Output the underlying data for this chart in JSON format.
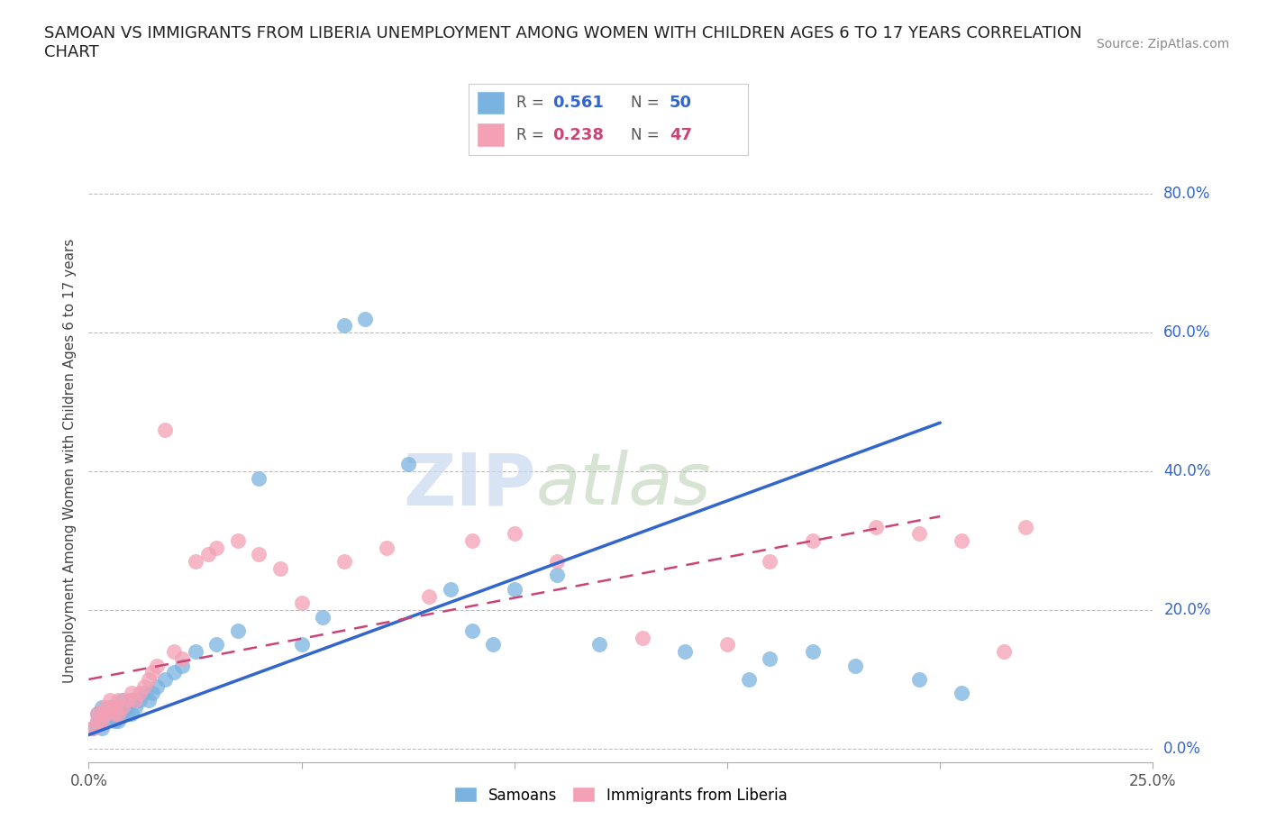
{
  "title": "SAMOAN VS IMMIGRANTS FROM LIBERIA UNEMPLOYMENT AMONG WOMEN WITH CHILDREN AGES 6 TO 17 YEARS CORRELATION\nCHART",
  "source": "Source: ZipAtlas.com",
  "ylabel_label": "Unemployment Among Women with Children Ages 6 to 17 years",
  "xlim": [
    0.0,
    0.25
  ],
  "ylim": [
    -0.02,
    0.85
  ],
  "ytick_vals": [
    0.0,
    0.2,
    0.4,
    0.6,
    0.8
  ],
  "xtick_vals": [
    0.0,
    0.05,
    0.1,
    0.15,
    0.2,
    0.25
  ],
  "watermark_zip": "ZIP",
  "watermark_atlas": "atlas",
  "legend_r1": "0.561",
  "legend_n1": "50",
  "legend_r2": "0.238",
  "legend_n2": "47",
  "samoan_color": "#7ab3e0",
  "liberia_color": "#f4a0b5",
  "samoan_line_color": "#3366cc",
  "liberia_line_color": "#cc4477",
  "background": "#ffffff",
  "grid_color": "#bbbbcc",
  "blue_line_x0": 0.0,
  "blue_line_y0": 0.02,
  "blue_line_x1": 0.2,
  "blue_line_y1": 0.47,
  "pink_line_x0": 0.0,
  "pink_line_y0": 0.1,
  "pink_line_x1": 0.2,
  "pink_line_y1": 0.335,
  "samoan_x": [
    0.001,
    0.002,
    0.002,
    0.003,
    0.003,
    0.004,
    0.004,
    0.005,
    0.005,
    0.006,
    0.006,
    0.007,
    0.007,
    0.008,
    0.008,
    0.009,
    0.009,
    0.01,
    0.01,
    0.011,
    0.012,
    0.013,
    0.014,
    0.015,
    0.016,
    0.018,
    0.02,
    0.022,
    0.025,
    0.03,
    0.035,
    0.04,
    0.05,
    0.055,
    0.06,
    0.065,
    0.075,
    0.085,
    0.09,
    0.095,
    0.1,
    0.11,
    0.12,
    0.14,
    0.155,
    0.16,
    0.17,
    0.18,
    0.195,
    0.205
  ],
  "samoan_y": [
    0.03,
    0.04,
    0.05,
    0.03,
    0.06,
    0.04,
    0.05,
    0.05,
    0.06,
    0.04,
    0.05,
    0.06,
    0.04,
    0.05,
    0.07,
    0.05,
    0.06,
    0.07,
    0.05,
    0.06,
    0.07,
    0.08,
    0.07,
    0.08,
    0.09,
    0.1,
    0.11,
    0.12,
    0.14,
    0.15,
    0.17,
    0.39,
    0.15,
    0.19,
    0.61,
    0.62,
    0.41,
    0.23,
    0.17,
    0.15,
    0.23,
    0.25,
    0.15,
    0.14,
    0.1,
    0.13,
    0.14,
    0.12,
    0.1,
    0.08
  ],
  "liberia_x": [
    0.001,
    0.002,
    0.002,
    0.003,
    0.003,
    0.004,
    0.004,
    0.005,
    0.005,
    0.006,
    0.006,
    0.007,
    0.007,
    0.008,
    0.009,
    0.01,
    0.011,
    0.012,
    0.013,
    0.014,
    0.015,
    0.016,
    0.018,
    0.02,
    0.022,
    0.025,
    0.028,
    0.03,
    0.035,
    0.04,
    0.045,
    0.05,
    0.06,
    0.07,
    0.08,
    0.09,
    0.1,
    0.11,
    0.13,
    0.15,
    0.16,
    0.17,
    0.185,
    0.195,
    0.205,
    0.215,
    0.22
  ],
  "liberia_y": [
    0.03,
    0.04,
    0.05,
    0.04,
    0.05,
    0.05,
    0.06,
    0.06,
    0.07,
    0.05,
    0.06,
    0.07,
    0.05,
    0.06,
    0.07,
    0.08,
    0.07,
    0.08,
    0.09,
    0.1,
    0.11,
    0.12,
    0.46,
    0.14,
    0.13,
    0.27,
    0.28,
    0.29,
    0.3,
    0.28,
    0.26,
    0.21,
    0.27,
    0.29,
    0.22,
    0.3,
    0.31,
    0.27,
    0.16,
    0.15,
    0.27,
    0.3,
    0.32,
    0.31,
    0.3,
    0.14,
    0.32
  ]
}
